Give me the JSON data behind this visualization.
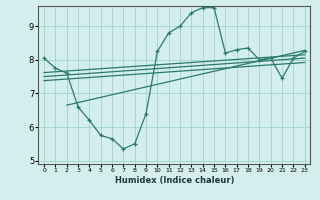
{
  "xlabel": "Humidex (Indice chaleur)",
  "bg_color": "#d4eeed",
  "grid_color": "#a8d8d0",
  "line_color": "#2a7a6a",
  "xlim": [
    -0.5,
    23.5
  ],
  "ylim": [
    4.9,
    9.6
  ],
  "yticks": [
    5,
    6,
    7,
    8,
    9
  ],
  "xticks": [
    0,
    1,
    2,
    3,
    4,
    5,
    6,
    7,
    8,
    9,
    10,
    11,
    12,
    13,
    14,
    15,
    16,
    17,
    18,
    19,
    20,
    21,
    22,
    23
  ],
  "curve1_x": [
    0,
    1,
    2,
    3,
    4,
    5,
    6,
    7,
    8,
    9,
    10,
    11,
    12,
    13,
    14,
    15,
    16,
    17,
    18,
    19,
    20,
    21,
    22,
    23
  ],
  "curve1_y": [
    8.05,
    7.75,
    7.6,
    6.6,
    6.2,
    5.75,
    5.65,
    5.35,
    5.5,
    6.4,
    8.25,
    8.8,
    9.0,
    9.4,
    9.55,
    9.55,
    8.2,
    8.3,
    8.35,
    8.0,
    8.05,
    7.45,
    8.05,
    8.25
  ],
  "line2_x": [
    0,
    23
  ],
  "line2_y": [
    7.62,
    8.15
  ],
  "line3_x": [
    0,
    23
  ],
  "line3_y": [
    7.5,
    8.05
  ],
  "line4_x": [
    0,
    23
  ],
  "line4_y": [
    7.38,
    7.92
  ],
  "line5_x": [
    2,
    23
  ],
  "line5_y": [
    6.65,
    8.28
  ]
}
